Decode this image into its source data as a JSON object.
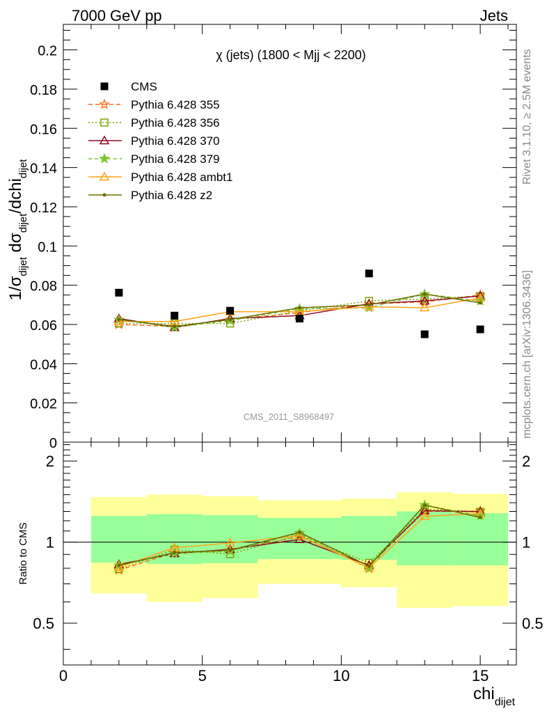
{
  "header": {
    "left": "7000 GeV pp",
    "right": "Jets"
  },
  "side_labels": {
    "rivet": "Rivet 3.1.10, ≥ 2.5M events",
    "mcplots": "mcplots.cern.ch [arXiv:1306.3436]"
  },
  "chart_data": {
    "type": "line",
    "title": "χ (jets) (1800 < Mjj < 2200)",
    "watermark": "CMS_2011_S8968497",
    "xlabel": "chi",
    "xlabel_sub": "dijet",
    "ylabel_main": "1/σ_dijet dσ_dijet/dchi_dijet",
    "ylabel_ratio": "Ratio to CMS",
    "xlim": [
      0,
      16.3
    ],
    "ylim_main": [
      0,
      0.213
    ],
    "ylim_ratio": [
      0.35,
      2.35
    ],
    "ratio_log_scale": true,
    "x_ticks": [
      "0",
      "5",
      "10",
      "15"
    ],
    "y_ticks_main": [
      "0",
      "0.02",
      "0.04",
      "0.06",
      "0.08",
      "0.1",
      "0.12",
      "0.14",
      "0.16",
      "0.18",
      "0.2"
    ],
    "y_ticks_ratio": [
      "0.5",
      "1",
      "2"
    ],
    "bin_edges": [
      1,
      3,
      5,
      7,
      10,
      12,
      14,
      16
    ],
    "x": [
      2,
      4,
      6,
      8.5,
      11,
      13,
      15
    ],
    "data": {
      "name": "CMS",
      "values": [
        0.0762,
        0.0645,
        0.067,
        0.063,
        0.086,
        0.055,
        0.0575
      ]
    },
    "uncertainty_bands": {
      "inner_low": [
        0.84,
        0.83,
        0.835,
        0.865,
        0.86,
        0.82,
        0.82
      ],
      "inner_high": [
        1.25,
        1.27,
        1.26,
        1.23,
        1.25,
        1.3,
        1.28
      ],
      "outer_low": [
        0.645,
        0.6,
        0.62,
        0.7,
        0.68,
        0.57,
        0.58
      ],
      "outer_high": [
        1.47,
        1.5,
        1.48,
        1.43,
        1.45,
        1.53,
        1.51
      ]
    },
    "series": [
      {
        "name": "Pythia 6.428 355",
        "values": [
          0.06,
          0.059,
          0.0625,
          0.066,
          0.0705,
          0.0715,
          0.075
        ]
      },
      {
        "name": "Pythia 6.428 356",
        "values": [
          0.0605,
          0.0605,
          0.0605,
          0.067,
          0.072,
          0.073,
          0.0745
        ]
      },
      {
        "name": "Pythia 6.428 370",
        "values": [
          0.063,
          0.0585,
          0.063,
          0.0645,
          0.0705,
          0.072,
          0.0745
        ]
      },
      {
        "name": "Pythia 6.428 379",
        "values": [
          0.0625,
          0.0585,
          0.062,
          0.068,
          0.0685,
          0.0755,
          0.072
        ]
      },
      {
        "name": "Pythia 6.428 ambt1",
        "values": [
          0.0615,
          0.0615,
          0.0665,
          0.0665,
          0.069,
          0.0685,
          0.0735
        ]
      },
      {
        "name": "Pythia 6.428 z2",
        "values": [
          0.0625,
          0.059,
          0.0625,
          0.0685,
          0.07,
          0.0755,
          0.071
        ]
      }
    ],
    "colors": {
      "Pythia 6.428 355": "#ff6a13",
      "Pythia 6.428 356": "#79a300",
      "Pythia 6.428 370": "#8b0a1e",
      "Pythia 6.428 379": "#7dc42e",
      "Pythia 6.428 ambt1": "#ffa319",
      "Pythia 6.428 z2": "#6b6b00",
      "band_inner": "#99ff99",
      "band_outer": "#ffff99"
    },
    "legend_position": "top-left"
  }
}
